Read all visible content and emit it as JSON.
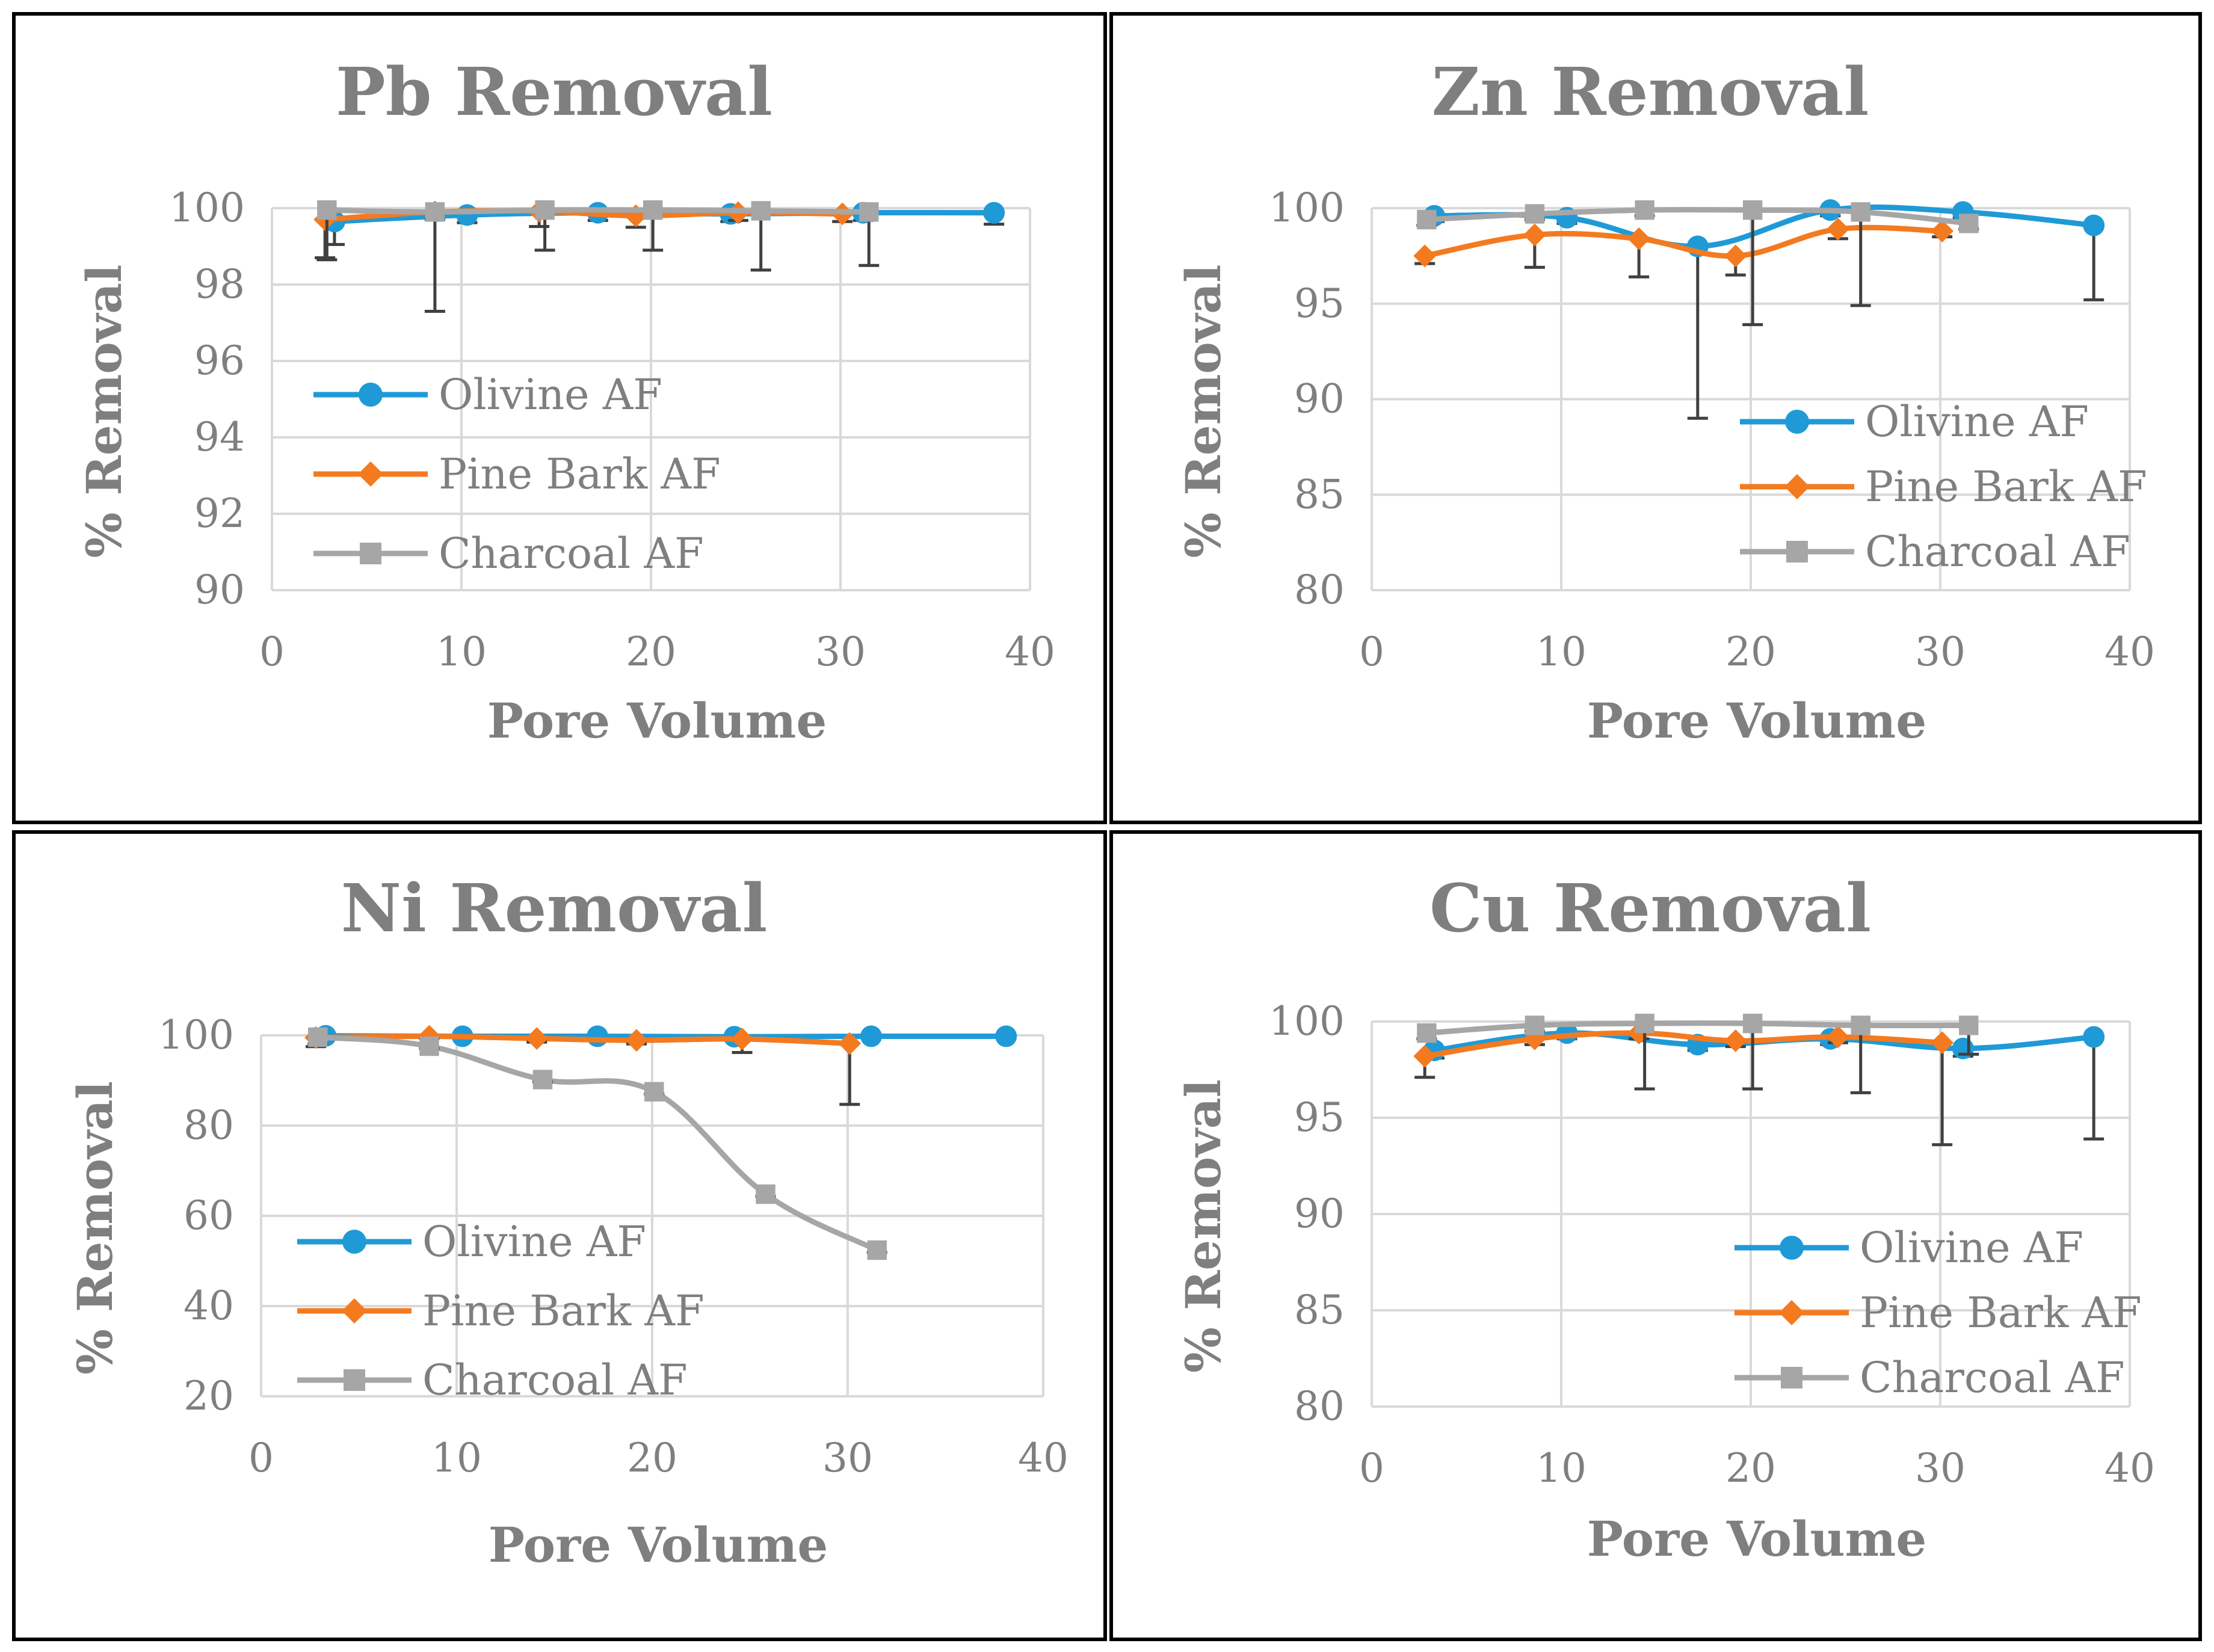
{
  "colors": {
    "olivine": "#1f9ad6",
    "pine": "#f47a20",
    "charcoal": "#a6a6a6",
    "grid": "#d9d9d9",
    "text": "#7f7f7f",
    "errorbar": "#404040"
  },
  "chart_data": [
    {
      "type": "line",
      "title": "Pb Removal",
      "xlabel": "Pore Volume",
      "ylabel": "% Removal",
      "xlim": [
        0,
        40
      ],
      "ylim": [
        90,
        100
      ],
      "xticks": [
        0,
        10,
        20,
        30,
        40
      ],
      "yticks": [
        90,
        92,
        94,
        96,
        98,
        100
      ],
      "legend_position": "center-left",
      "series": [
        {
          "name": "Olivine AF",
          "marker": "circle",
          "x": [
            3.3,
            10.3,
            17.2,
            24.2,
            31.2,
            38.1
          ],
          "y": [
            99.65,
            99.82,
            99.88,
            99.85,
            99.88,
            99.88
          ],
          "err": [
            0.6,
            0.2,
            0.2,
            0.2,
            0.2,
            0.3
          ]
        },
        {
          "name": "Pine Bark AF",
          "marker": "diamond",
          "x": [
            2.8,
            8.6,
            14.1,
            19.2,
            24.6,
            30.1
          ],
          "y": [
            99.7,
            99.9,
            99.92,
            99.8,
            99.88,
            99.85
          ],
          "err": [
            1.0,
            0.2,
            0.4,
            0.3,
            0.2,
            0.2
          ]
        },
        {
          "name": "Charcoal AF",
          "marker": "square",
          "x": [
            2.9,
            8.6,
            14.4,
            20.1,
            25.8,
            31.5
          ],
          "y": [
            99.95,
            99.9,
            99.95,
            99.95,
            99.93,
            99.9
          ],
          "err": [
            1.3,
            2.6,
            1.05,
            1.05,
            1.55,
            1.4
          ]
        }
      ]
    },
    {
      "type": "line",
      "title": "Zn Removal",
      "xlabel": "Pore Volume",
      "ylabel": "% Removal",
      "xlim": [
        0,
        40
      ],
      "ylim": [
        80,
        100
      ],
      "xticks": [
        0,
        10,
        20,
        30,
        40
      ],
      "yticks": [
        80,
        85,
        90,
        95,
        100
      ],
      "legend_position": "bottom-right",
      "series": [
        {
          "name": "Olivine AF",
          "marker": "circle",
          "x": [
            3.3,
            10.3,
            17.2,
            24.2,
            31.2,
            38.1
          ],
          "y": [
            99.6,
            99.5,
            98.0,
            99.9,
            99.8,
            99.1
          ],
          "err": [
            0.3,
            0.3,
            9.0,
            0.3,
            0.3,
            3.9
          ]
        },
        {
          "name": "Pine Bark AF",
          "marker": "diamond",
          "x": [
            2.8,
            8.6,
            14.1,
            19.2,
            24.6,
            30.1
          ],
          "y": [
            97.5,
            98.6,
            98.4,
            97.5,
            98.9,
            98.8
          ],
          "err": [
            0.4,
            1.7,
            2.0,
            1.0,
            0.5,
            0.3
          ]
        },
        {
          "name": "Charcoal AF",
          "marker": "square",
          "x": [
            2.9,
            8.6,
            14.4,
            20.1,
            25.8,
            31.5
          ],
          "y": [
            99.4,
            99.7,
            99.9,
            99.9,
            99.8,
            99.2
          ],
          "err": [
            0.3,
            0.3,
            0.3,
            6.0,
            4.9,
            0.3
          ]
        }
      ]
    },
    {
      "type": "line",
      "title": "Ni Removal",
      "xlabel": "Pore Volume",
      "ylabel": "% Removal",
      "xlim": [
        0,
        40
      ],
      "ylim": [
        20,
        100
      ],
      "xticks": [
        0,
        10,
        20,
        30,
        40
      ],
      "yticks": [
        20,
        40,
        60,
        80,
        100
      ],
      "legend_position": "bottom-left",
      "series": [
        {
          "name": "Olivine AF",
          "marker": "circle",
          "x": [
            3.3,
            10.3,
            17.2,
            24.2,
            31.2,
            38.1
          ],
          "y": [
            99.9,
            99.8,
            99.8,
            99.7,
            99.8,
            99.8
          ],
          "err": [
            0.5,
            0.5,
            0.5,
            0.5,
            0.5,
            0.5
          ]
        },
        {
          "name": "Pine Bark AF",
          "marker": "diamond",
          "x": [
            2.8,
            8.6,
            14.1,
            19.2,
            24.6,
            30.1
          ],
          "y": [
            99.5,
            99.8,
            99.3,
            98.9,
            99.2,
            98.2
          ],
          "err": [
            2.0,
            0.5,
            0.8,
            0.8,
            3.0,
            13.5
          ]
        },
        {
          "name": "Charcoal AF",
          "marker": "square",
          "x": [
            2.9,
            8.6,
            14.4,
            20.1,
            25.8,
            31.5
          ],
          "y": [
            99.6,
            97.6,
            90.2,
            87.5,
            64.8,
            52.4
          ],
          "err": [
            1.5,
            0.5,
            0.5,
            0.5,
            0.5,
            0.5
          ]
        }
      ]
    },
    {
      "type": "line",
      "title": "Cu Removal",
      "xlabel": "Pore Volume",
      "ylabel": "% Removal",
      "xlim": [
        0,
        40
      ],
      "ylim": [
        80,
        100
      ],
      "xticks": [
        0,
        10,
        20,
        30,
        40
      ],
      "yticks": [
        80,
        85,
        90,
        95,
        100
      ],
      "legend_position": "bottom-right",
      "series": [
        {
          "name": "Olivine AF",
          "marker": "circle",
          "x": [
            3.3,
            10.3,
            17.2,
            24.2,
            31.2,
            38.1
          ],
          "y": [
            98.5,
            99.4,
            98.8,
            99.1,
            98.6,
            99.2
          ],
          "err": [
            0.4,
            0.3,
            0.3,
            0.3,
            0.4,
            5.3
          ]
        },
        {
          "name": "Pine Bark AF",
          "marker": "diamond",
          "x": [
            2.8,
            8.6,
            14.1,
            19.2,
            24.6,
            30.1
          ],
          "y": [
            98.2,
            99.1,
            99.4,
            99.0,
            99.2,
            98.9
          ],
          "err": [
            1.1,
            0.3,
            0.3,
            0.3,
            0.3,
            5.3
          ]
        },
        {
          "name": "Charcoal AF",
          "marker": "square",
          "x": [
            2.9,
            8.6,
            14.4,
            20.1,
            25.8,
            31.5
          ],
          "y": [
            99.4,
            99.8,
            99.9,
            99.9,
            99.8,
            99.8
          ],
          "err": [
            0.3,
            0.3,
            3.4,
            3.4,
            3.5,
            1.5
          ]
        }
      ]
    }
  ]
}
